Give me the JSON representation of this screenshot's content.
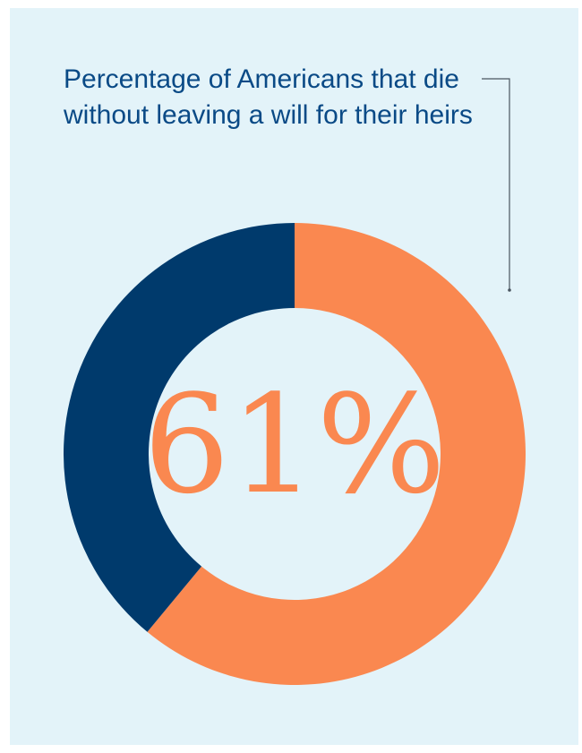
{
  "chart_data": {
    "type": "pie",
    "title": "Percentage of Americans that die without leaving a will for their heirs",
    "slices": [
      {
        "value": 61,
        "color": "#fa8850"
      },
      {
        "value": 39,
        "color": "#003a6c"
      }
    ],
    "center_label": "61%",
    "legend": "none",
    "donut": true
  },
  "colors": {
    "background": "#e3f3f9",
    "title": "#0a4a86",
    "leader_line": "#4a5560",
    "highlight": "#fa8850",
    "remainder": "#003a6c"
  }
}
